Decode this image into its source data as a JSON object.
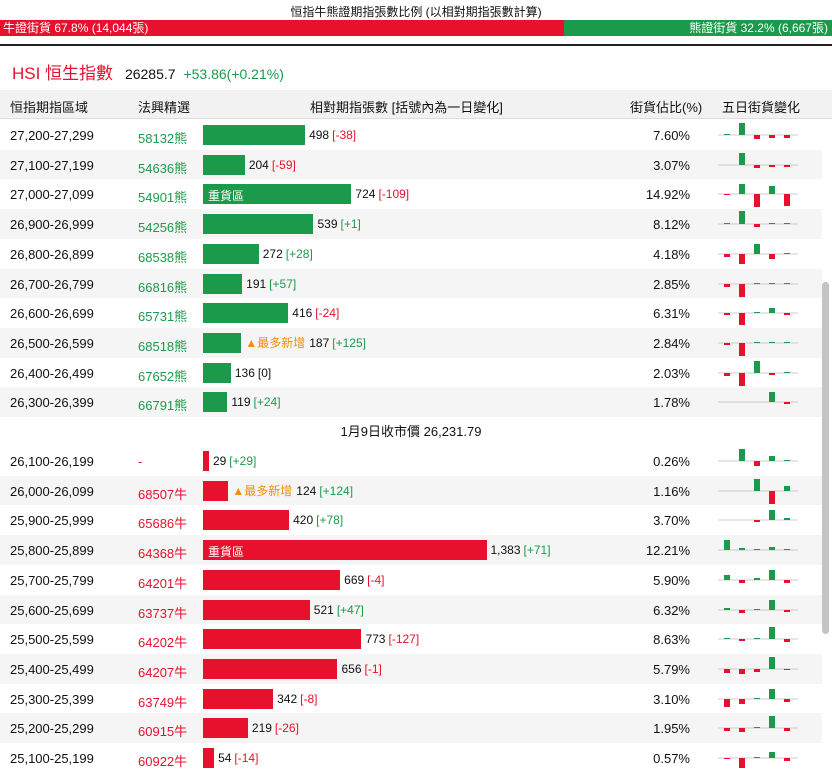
{
  "title": "恒指牛熊證期指張數比例 (以相對期指張數計算)",
  "colors": {
    "bull": "#e8112d",
    "bear": "#1b9a4b"
  },
  "ratio": {
    "bull": {
      "value": 67.8,
      "label": "牛證街貨 67.8% (14,044張)"
    },
    "bear": {
      "value": 32.2,
      "label": "熊證街貨 32.2% (6,667張)"
    }
  },
  "index": {
    "name": "HSI 恒生指數",
    "price": "26285.7",
    "change": "+53.86(+0.21%)"
  },
  "columns": [
    "恒指期指區域",
    "法興精選",
    "相對期指張數 [括號內為一日變化]",
    "街貨佔比(%)",
    "五日街貨變化"
  ],
  "bear_rows": [
    {
      "range": "27,200-27,299",
      "code": "58132熊",
      "contracts": 498,
      "change": "[-38]",
      "share": "7.60%",
      "five_day": [
        1,
        12,
        -4,
        -3,
        -3
      ]
    },
    {
      "range": "27,100-27,199",
      "code": "54636熊",
      "contracts": 204,
      "change": "[-59]",
      "share": "3.07%",
      "five_day": [
        0,
        12,
        -3,
        -2,
        -2
      ]
    },
    {
      "range": "27,000-27,099",
      "code": "54901熊",
      "contracts": 724,
      "change": "[-109]",
      "share": "14.92%",
      "tag": "重貨區",
      "five_day": [
        -1,
        10,
        -14,
        8,
        -12
      ]
    },
    {
      "range": "26,900-26,999",
      "code": "54256熊",
      "contracts": 539,
      "change": "[+1]",
      "share": "8.12%",
      "five_day": [
        1,
        14,
        -3,
        1,
        1
      ]
    },
    {
      "range": "26,800-26,899",
      "code": "68538熊",
      "contracts": 272,
      "change": "[+28]",
      "share": "4.18%",
      "five_day": [
        -3,
        -10,
        10,
        -5,
        1
      ]
    },
    {
      "range": "26,700-26,799",
      "code": "66816熊",
      "contracts": 191,
      "change": "[+57]",
      "share": "2.85%",
      "five_day": [
        -3,
        -16,
        1,
        1,
        1
      ]
    },
    {
      "range": "26,600-26,699",
      "code": "65731熊",
      "contracts": 416,
      "change": "[-24]",
      "share": "6.31%",
      "five_day": [
        -2,
        -12,
        1,
        5,
        -2
      ]
    },
    {
      "range": "26,500-26,599",
      "code": "68518熊",
      "contracts": 187,
      "change": "[+125]",
      "share": "2.84%",
      "tag": "▲最多新增",
      "five_day": [
        -2,
        -13,
        1,
        1,
        1
      ]
    },
    {
      "range": "26,400-26,499",
      "code": "67652熊",
      "contracts": 136,
      "change": "[0]",
      "share": "2.03%",
      "five_day": [
        -3,
        -13,
        12,
        -2,
        1
      ]
    },
    {
      "range": "26,300-26,399",
      "code": "66791熊",
      "contracts": 119,
      "change": "[+24]",
      "share": "1.78%",
      "five_day": [
        0,
        0,
        0,
        10,
        -2
      ]
    }
  ],
  "close_label": "1月9日收市價 26,231.79",
  "bull_rows": [
    {
      "range": "26,100-26,199",
      "code": "-",
      "contracts": 29,
      "change": "[+29]",
      "share": "0.26%",
      "five_day": [
        0,
        12,
        -5,
        5,
        1
      ]
    },
    {
      "range": "26,000-26,099",
      "code": "68507牛",
      "contracts": 124,
      "change": "[+124]",
      "share": "1.16%",
      "tag": "▲最多新增",
      "five_day": [
        0,
        0,
        12,
        -14,
        5
      ]
    },
    {
      "range": "25,900-25,999",
      "code": "65686牛",
      "contracts": 420,
      "change": "[+78]",
      "share": "3.70%",
      "five_day": [
        0,
        0,
        -2,
        10,
        2
      ]
    },
    {
      "range": "25,800-25,899",
      "code": "64368牛",
      "contracts": 1383,
      "contracts_label": "1,383",
      "change": "[+71]",
      "share": "12.21%",
      "tag": "重貨區",
      "five_day": [
        10,
        2,
        1,
        3,
        1
      ]
    },
    {
      "range": "25,700-25,799",
      "code": "64201牛",
      "contracts": 669,
      "change": "[-4]",
      "share": "5.90%",
      "five_day": [
        5,
        -3,
        2,
        10,
        -3
      ]
    },
    {
      "range": "25,600-25,699",
      "code": "63737牛",
      "contracts": 521,
      "change": "[+47]",
      "share": "6.32%",
      "five_day": [
        2,
        -3,
        1,
        10,
        -2
      ]
    },
    {
      "range": "25,500-25,599",
      "code": "64202牛",
      "contracts": 773,
      "change": "[-127]",
      "share": "8.63%",
      "five_day": [
        1,
        -2,
        1,
        12,
        -3
      ]
    },
    {
      "range": "25,400-25,499",
      "code": "64207牛",
      "contracts": 656,
      "change": "[-1]",
      "share": "5.79%",
      "five_day": [
        -4,
        -5,
        -3,
        12,
        -1
      ]
    },
    {
      "range": "25,300-25,399",
      "code": "63749牛",
      "contracts": 342,
      "change": "[-8]",
      "share": "3.10%",
      "five_day": [
        -8,
        -5,
        1,
        10,
        -3
      ]
    },
    {
      "range": "25,200-25,299",
      "code": "60915牛",
      "contracts": 219,
      "change": "[-26]",
      "share": "1.95%",
      "five_day": [
        -3,
        -4,
        1,
        12,
        -3
      ]
    },
    {
      "range": "25,100-25,199",
      "code": "60922牛",
      "contracts": 54,
      "change": "[-14]",
      "share": "0.57%",
      "five_day": [
        -1,
        -10,
        1,
        6,
        -3
      ]
    }
  ]
}
